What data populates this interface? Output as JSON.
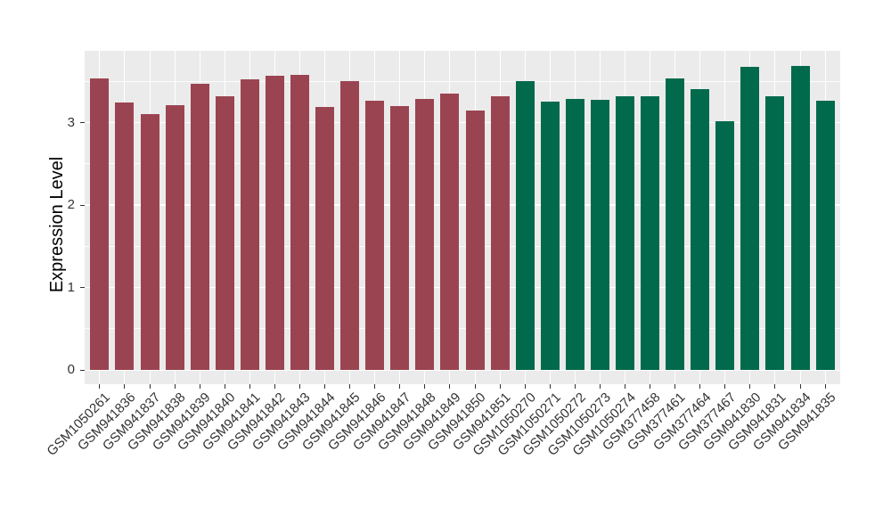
{
  "chart_data": {
    "type": "bar",
    "title": "",
    "xlabel": "",
    "ylabel": "Expression Level",
    "categories": [
      "GSM1050261",
      "GSM941836",
      "GSM941837",
      "GSM941838",
      "GSM941839",
      "GSM941840",
      "GSM941841",
      "GSM941842",
      "GSM941843",
      "GSM941844",
      "GSM941845",
      "GSM941846",
      "GSM941847",
      "GSM941848",
      "GSM941849",
      "GSM941850",
      "GSM941851",
      "GSM1050270",
      "GSM1050271",
      "GSM1050272",
      "GSM1050273",
      "GSM1050274",
      "GSM377458",
      "GSM377461",
      "GSM377464",
      "GSM377467",
      "GSM941830",
      "GSM941831",
      "GSM941834",
      "GSM941835"
    ],
    "values": [
      3.53,
      3.24,
      3.1,
      3.21,
      3.47,
      3.32,
      3.52,
      3.57,
      3.58,
      3.19,
      3.5,
      3.27,
      3.2,
      3.29,
      3.35,
      3.15,
      3.32,
      3.5,
      3.25,
      3.29,
      3.28,
      3.32,
      3.32,
      3.53,
      3.41,
      3.02,
      3.68,
      3.32,
      3.69,
      3.26
    ],
    "groups": [
      "A",
      "A",
      "A",
      "A",
      "A",
      "A",
      "A",
      "A",
      "A",
      "A",
      "A",
      "A",
      "A",
      "A",
      "A",
      "A",
      "A",
      "B",
      "B",
      "B",
      "B",
      "B",
      "B",
      "B",
      "B",
      "B",
      "B",
      "B",
      "B",
      "B"
    ],
    "group_colors": {
      "A": "#9B4451",
      "B": "#016A4C"
    },
    "yticks": [
      "0",
      "1",
      "2",
      "3"
    ],
    "ytick_values": [
      0,
      1,
      2,
      3
    ],
    "ylim": [
      -0.17,
      3.87
    ],
    "grid": {
      "majors": [
        0,
        1,
        2,
        3
      ],
      "minors": [
        0.5,
        1.5,
        2.5,
        3.5
      ],
      "color": "#FFFFFF",
      "vertical_major_per_category": true
    },
    "panel_bg": "#EBEBEB",
    "legend": "none",
    "x_label_angle_deg": 45
  }
}
